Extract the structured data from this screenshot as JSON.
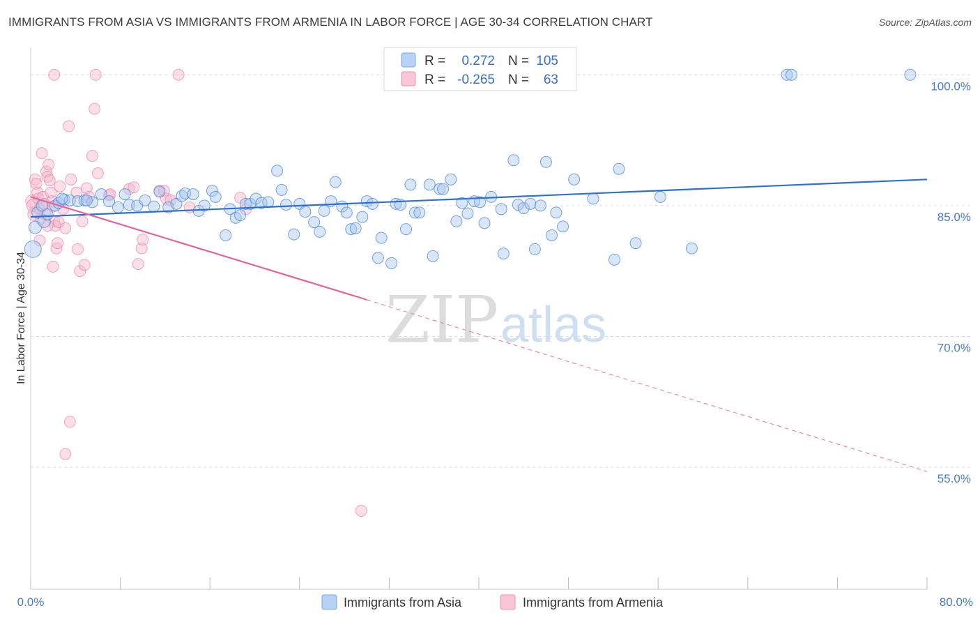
{
  "title": "IMMIGRANTS FROM ASIA VS IMMIGRANTS FROM ARMENIA IN LABOR FORCE | AGE 30-34 CORRELATION CHART",
  "source": "Source: ZipAtlas.com",
  "watermark": {
    "zip": "ZIP",
    "atlas": "atlas"
  },
  "colors": {
    "asia": "#4a86d8",
    "asia_fill": "#a9c8f0",
    "armenia": "#e8739a",
    "armenia_fill": "#f5b8cc",
    "tick": "#4a7cc9"
  },
  "legend": {
    "asia": {
      "r_label": "R =",
      "r_value": "0.272",
      "n_label": "N =",
      "n_value": "105"
    },
    "armenia": {
      "r_label": "R =",
      "r_value": "-0.265",
      "n_label": "N =",
      "n_value": "63"
    }
  },
  "chart_data": {
    "type": "scatter",
    "title": "IMMIGRANTS FROM ASIA VS IMMIGRANTS FROM ARMENIA IN LABOR FORCE | AGE 30-34 CORRELATION CHART",
    "xlabel": "",
    "ylabel": "In Labor Force | Age 30-34",
    "xlim": [
      0,
      80
    ],
    "ylim": [
      41,
      102.5
    ],
    "x_tick_labels": [
      "0.0%",
      "80.0%"
    ],
    "y_tick_labels": [
      "100.0%",
      "85.0%",
      "70.0%",
      "55.0%"
    ],
    "y_ticks": [
      100,
      85,
      70,
      55
    ],
    "grid": true,
    "legend_position": "bottom",
    "series": [
      {
        "name": "Immigrants from Asia",
        "color": "#4a86d8",
        "trend": {
          "x": [
            0,
            80
          ],
          "y": [
            83.7,
            88.0
          ]
        },
        "points": [
          [
            0.2,
            80.0,
            12
          ],
          [
            0.4,
            82.5,
            9
          ],
          [
            0.6,
            84.2,
            8
          ],
          [
            1.2,
            83.2,
            9
          ],
          [
            1.5,
            84.0,
            8
          ],
          [
            2.2,
            85.0,
            8
          ],
          [
            2.5,
            85.3,
            8
          ],
          [
            3.0,
            85.7,
            8
          ],
          [
            3.5,
            85.6,
            8
          ],
          [
            4.2,
            85.5,
            8
          ],
          [
            4.8,
            85.6,
            8
          ],
          [
            5.5,
            85.4,
            8
          ],
          [
            6.3,
            86.3,
            8
          ],
          [
            7.0,
            85.5,
            8
          ],
          [
            7.8,
            84.8,
            8
          ],
          [
            8.4,
            86.3,
            8
          ],
          [
            8.8,
            85.1,
            8
          ],
          [
            9.5,
            85.0,
            8
          ],
          [
            10.2,
            85.6,
            8
          ],
          [
            11.0,
            84.9,
            8
          ],
          [
            11.5,
            86.6,
            8
          ],
          [
            12.3,
            84.8,
            8
          ],
          [
            13.0,
            85.2,
            8
          ],
          [
            13.5,
            86.1,
            8
          ],
          [
            13.8,
            86.4,
            8
          ],
          [
            14.5,
            86.3,
            8
          ],
          [
            15.0,
            84.4,
            8
          ],
          [
            15.5,
            85.0,
            8
          ],
          [
            16.2,
            86.7,
            8
          ],
          [
            16.5,
            86.0,
            8
          ],
          [
            17.4,
            81.6,
            8
          ],
          [
            17.8,
            84.6,
            8
          ],
          [
            18.3,
            83.6,
            8
          ],
          [
            18.7,
            83.9,
            8
          ],
          [
            19.2,
            85.2,
            8
          ],
          [
            19.6,
            85.2,
            8
          ],
          [
            20.1,
            85.8,
            8
          ],
          [
            20.6,
            85.3,
            8
          ],
          [
            21.2,
            85.4,
            8
          ],
          [
            22.0,
            89.0,
            8
          ],
          [
            22.4,
            86.8,
            8
          ],
          [
            22.8,
            85.1,
            8
          ],
          [
            23.5,
            81.7,
            8
          ],
          [
            24.0,
            85.2,
            8
          ],
          [
            24.5,
            84.3,
            8
          ],
          [
            25.3,
            83.1,
            8
          ],
          [
            25.8,
            82.0,
            8
          ],
          [
            26.2,
            84.4,
            8
          ],
          [
            26.8,
            85.5,
            8
          ],
          [
            27.2,
            87.7,
            8
          ],
          [
            27.8,
            84.9,
            8
          ],
          [
            28.2,
            84.2,
            8
          ],
          [
            28.6,
            82.3,
            8
          ],
          [
            29.0,
            82.4,
            8
          ],
          [
            29.6,
            83.7,
            8
          ],
          [
            30.0,
            85.5,
            8
          ],
          [
            30.5,
            85.2,
            8
          ],
          [
            31.0,
            79.0,
            8
          ],
          [
            31.3,
            81.3,
            8
          ],
          [
            32.2,
            78.4,
            8
          ],
          [
            32.6,
            85.2,
            8
          ],
          [
            33.0,
            85.1,
            8
          ],
          [
            33.5,
            82.3,
            8
          ],
          [
            33.9,
            87.4,
            8
          ],
          [
            34.3,
            84.2,
            8
          ],
          [
            34.7,
            84.2,
            8
          ],
          [
            35.6,
            87.4,
            8
          ],
          [
            35.9,
            79.2,
            8
          ],
          [
            36.5,
            86.9,
            8
          ],
          [
            36.8,
            86.9,
            8
          ],
          [
            37.5,
            88.0,
            8
          ],
          [
            38.0,
            83.2,
            8
          ],
          [
            38.5,
            85.3,
            8
          ],
          [
            39.0,
            84.1,
            8
          ],
          [
            39.6,
            85.5,
            8
          ],
          [
            40.1,
            85.4,
            8
          ],
          [
            40.5,
            83.0,
            8
          ],
          [
            41.1,
            86.0,
            8
          ],
          [
            42.0,
            84.6,
            8
          ],
          [
            42.2,
            79.5,
            8
          ],
          [
            43.1,
            90.2,
            8
          ],
          [
            43.5,
            85.1,
            8
          ],
          [
            44.0,
            84.7,
            8
          ],
          [
            44.6,
            85.2,
            8
          ],
          [
            45.0,
            80.0,
            8
          ],
          [
            45.5,
            85.0,
            8
          ],
          [
            46.0,
            90.0,
            8
          ],
          [
            46.5,
            81.6,
            8
          ],
          [
            46.9,
            84.2,
            8
          ],
          [
            47.5,
            82.6,
            8
          ],
          [
            48.5,
            88.0,
            8
          ],
          [
            50.2,
            85.8,
            8
          ],
          [
            52.1,
            78.8,
            8
          ],
          [
            52.5,
            89.2,
            8
          ],
          [
            54.0,
            80.7,
            8
          ],
          [
            56.2,
            86.0,
            8
          ],
          [
            59.0,
            80.1,
            8
          ],
          [
            67.5,
            100.0,
            8
          ],
          [
            67.9,
            100.0,
            8
          ],
          [
            78.5,
            100.0,
            8
          ],
          [
            1.0,
            85.0,
            8
          ],
          [
            2.8,
            85.8,
            8
          ],
          [
            5.0,
            85.6,
            8
          ]
        ]
      },
      {
        "name": "Immigrants from Armenia",
        "color": "#e8739a",
        "trend": {
          "x": [
            0,
            30
          ],
          "y": [
            86.0,
            74.2
          ]
        },
        "trend_dashed": {
          "x": [
            30,
            80
          ],
          "y": [
            74.2,
            54.5
          ]
        },
        "points": [
          [
            0.1,
            85.5,
            9
          ],
          [
            0.2,
            85.0,
            9
          ],
          [
            0.3,
            84.0,
            9
          ],
          [
            0.4,
            88.0,
            8
          ],
          [
            0.5,
            87.5,
            8
          ],
          [
            0.6,
            86.5,
            8
          ],
          [
            0.7,
            85.8,
            8
          ],
          [
            0.8,
            84.6,
            8
          ],
          [
            0.9,
            83.5,
            8
          ],
          [
            1.0,
            91.0,
            8
          ],
          [
            1.1,
            86.0,
            8
          ],
          [
            1.2,
            85.2,
            8
          ],
          [
            1.3,
            84.0,
            8
          ],
          [
            1.4,
            88.9,
            8
          ],
          [
            1.5,
            88.3,
            8
          ],
          [
            1.6,
            89.7,
            8
          ],
          [
            1.7,
            87.9,
            8
          ],
          [
            1.8,
            86.5,
            8
          ],
          [
            1.9,
            85.5,
            8
          ],
          [
            2.0,
            84.9,
            8
          ],
          [
            2.1,
            83.2,
            8
          ],
          [
            2.2,
            82.7,
            8
          ],
          [
            2.3,
            80.1,
            8
          ],
          [
            2.4,
            80.7,
            8
          ],
          [
            2.0,
            78.0,
            8
          ],
          [
            2.5,
            83.1,
            8
          ],
          [
            2.6,
            87.2,
            8
          ],
          [
            2.9,
            84.6,
            8
          ],
          [
            3.1,
            82.4,
            8
          ],
          [
            3.4,
            94.1,
            8
          ],
          [
            3.6,
            88.0,
            8
          ],
          [
            3.5,
            60.2,
            8
          ],
          [
            3.1,
            56.5,
            8
          ],
          [
            4.1,
            86.5,
            8
          ],
          [
            4.2,
            80.0,
            8
          ],
          [
            4.4,
            77.5,
            8
          ],
          [
            4.6,
            83.2,
            8
          ],
          [
            4.8,
            78.2,
            8
          ],
          [
            5.0,
            87.0,
            8
          ],
          [
            5.2,
            86.0,
            8
          ],
          [
            5.5,
            90.7,
            8
          ],
          [
            5.7,
            96.1,
            8
          ],
          [
            5.8,
            100.0,
            8
          ],
          [
            6.0,
            88.7,
            8
          ],
          [
            2.1,
            100.0,
            8
          ],
          [
            7.0,
            86.2,
            8
          ],
          [
            7.1,
            86.3,
            8
          ],
          [
            8.8,
            86.9,
            8
          ],
          [
            9.2,
            87.1,
            8
          ],
          [
            9.6,
            78.3,
            8
          ],
          [
            9.9,
            80.1,
            8
          ],
          [
            10.0,
            81.1,
            8
          ],
          [
            11.5,
            86.7,
            8
          ],
          [
            11.9,
            86.7,
            8
          ],
          [
            12.1,
            85.8,
            8
          ],
          [
            12.5,
            85.6,
            8
          ],
          [
            13.2,
            100.0,
            8
          ],
          [
            14.2,
            84.8,
            8
          ],
          [
            18.7,
            85.9,
            8
          ],
          [
            19.2,
            84.6,
            8
          ],
          [
            29.5,
            50.0,
            8
          ],
          [
            0.8,
            81.0,
            8
          ],
          [
            1.5,
            82.7,
            8
          ]
        ]
      }
    ]
  },
  "bottom_legend": {
    "asia": "Immigrants from Asia",
    "armenia": "Immigrants from Armenia"
  }
}
